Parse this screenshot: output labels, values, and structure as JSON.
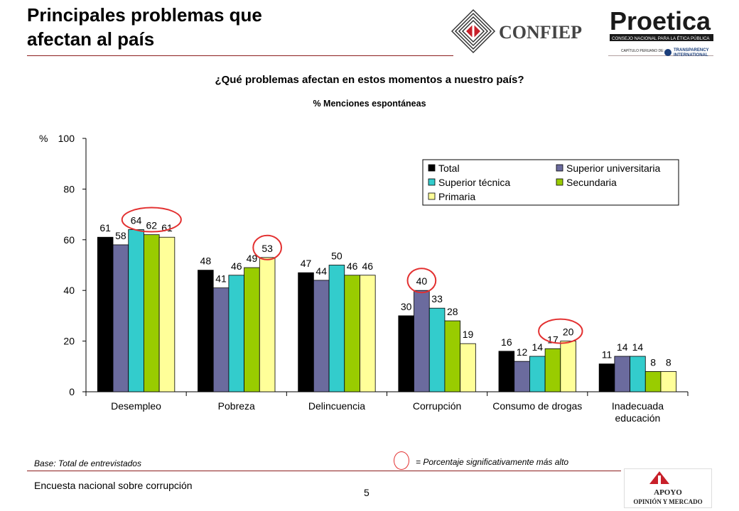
{
  "header": {
    "title_line1": "Principales problemas que",
    "title_line2": "afectan al país"
  },
  "logos": {
    "confiep": "CONFIEP",
    "proetica": "Proetica",
    "proetica_tagline": "CONSEJO NACIONAL PARA LA ÉTICA PÚBLICA",
    "proetica_sub1": "CAPÍTULO PERUANO DE:",
    "proetica_sub2": "TRANSPARENCY",
    "proetica_sub3": "INTERNATIONAL",
    "apoyo1": "APOYO",
    "apoyo2": "OPINIÓN Y MERCADO"
  },
  "question": "¿Qué problemas afectan en estos momentos a nuestro país?",
  "subtitle": "% Menciones espontáneas",
  "footer": {
    "base": "Base: Total de entrevistados",
    "significance": "= Porcentaje significativamente más alto",
    "survey": "Encuesta nacional sobre corrupción",
    "page": "5"
  },
  "colors": {
    "rule": "#8b1c1c",
    "highlight": "#e33030"
  },
  "chart_data": {
    "type": "bar",
    "y_unit": "%",
    "ylim": [
      0,
      100
    ],
    "yticks": [
      0,
      20,
      40,
      60,
      80,
      100
    ],
    "grid": false,
    "legend_position": "top-right",
    "categories": [
      [
        "Desempleo"
      ],
      [
        "Pobreza"
      ],
      [
        "Delincuencia"
      ],
      [
        "Corrupción"
      ],
      [
        "Consumo de drogas"
      ],
      [
        "Inadecuada",
        "educación"
      ]
    ],
    "series": [
      {
        "name": "Total",
        "color": "#000000",
        "values": [
          61,
          48,
          47,
          30,
          16,
          11
        ]
      },
      {
        "name": "Superior universitaria",
        "color": "#6b6b9e",
        "values": [
          58,
          41,
          44,
          40,
          12,
          14
        ]
      },
      {
        "name": "Superior técnica",
        "color": "#33cccc",
        "values": [
          64,
          46,
          50,
          33,
          14,
          14
        ]
      },
      {
        "name": "Secundaria",
        "color": "#99cc00",
        "values": [
          62,
          49,
          46,
          28,
          17,
          8
        ]
      },
      {
        "name": "Primaria",
        "color": "#ffff99",
        "values": [
          61,
          53,
          46,
          19,
          20,
          8
        ]
      }
    ],
    "highlights": [
      {
        "category": 0,
        "series": [
          2,
          3,
          4
        ]
      },
      {
        "category": 1,
        "series": [
          4
        ]
      },
      {
        "category": 3,
        "series": [
          1
        ]
      },
      {
        "category": 4,
        "series": [
          3,
          4
        ]
      }
    ]
  }
}
